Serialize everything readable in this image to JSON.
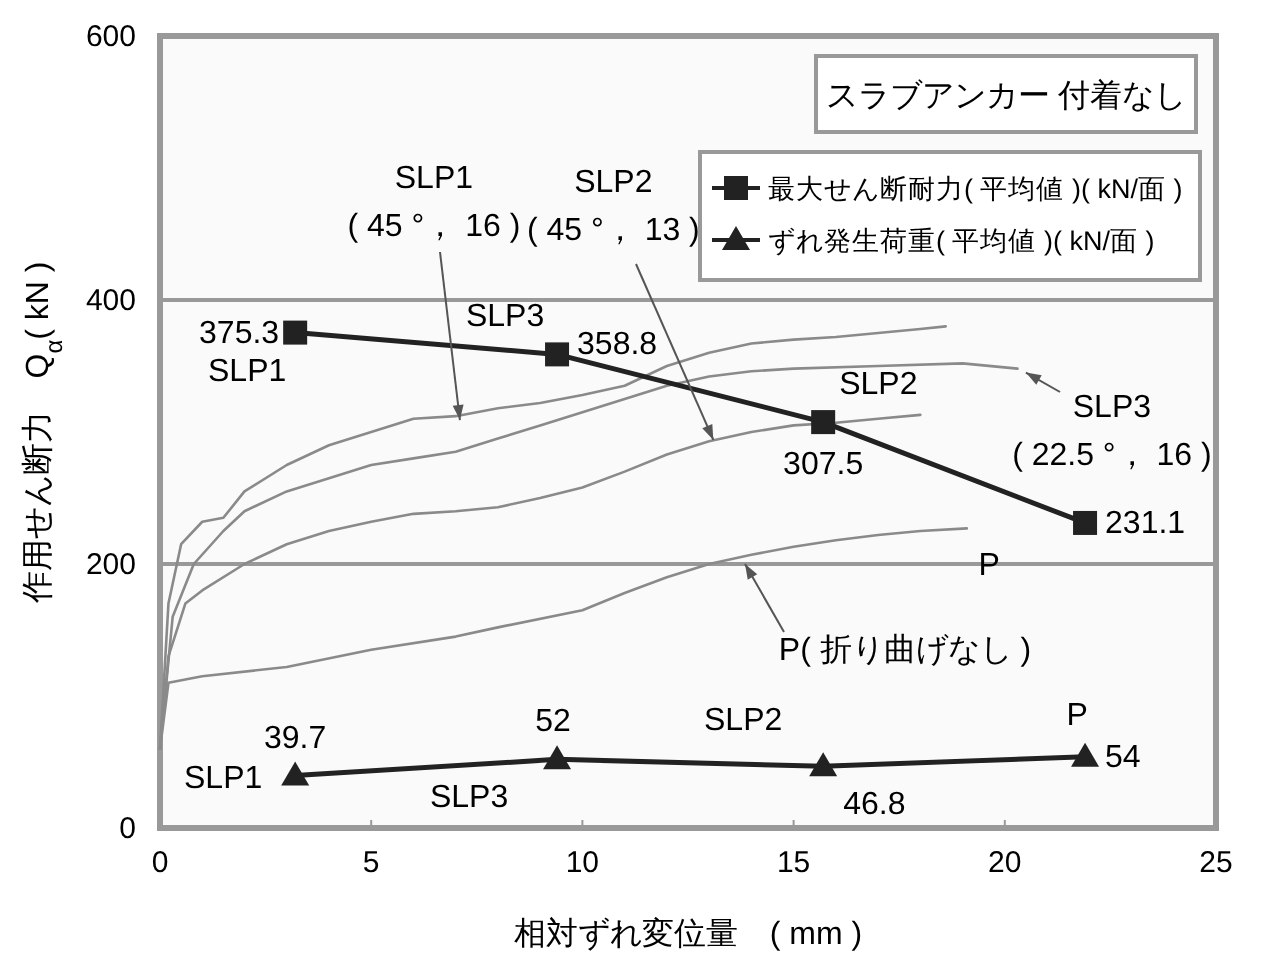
{
  "chart_data": {
    "type": "line",
    "subtitle": "スラブアンカー 付着なし",
    "xlabel": "相対ずれ変位量　( mm )",
    "ylabel": "作用せん断力　Q$_{α}$( kN )",
    "xlim": [
      0,
      25
    ],
    "xticks": [
      0,
      5,
      10,
      15,
      20,
      25
    ],
    "ylim": [
      0,
      600
    ],
    "yticks": [
      0,
      200,
      400,
      600
    ],
    "grid": "y",
    "legend": "top right",
    "series": [
      {
        "color": "#8a8a8a",
        "marker": "none",
        "x": [
          0,
          0.2,
          0.5,
          1,
          1.5,
          2,
          3,
          4,
          5,
          6,
          7,
          8,
          9,
          10,
          11,
          12,
          13,
          14,
          15,
          16,
          17,
          18,
          18.6
        ],
        "values": [
          60,
          170,
          215,
          232,
          235,
          255,
          275,
          290,
          300,
          310,
          312,
          318,
          322,
          328,
          335,
          350,
          360,
          367,
          370,
          372,
          375,
          378,
          380
        ]
      },
      {
        "color": "#8a8a8a",
        "marker": "none",
        "x": [
          0,
          0.3,
          0.8,
          1.5,
          2,
          3,
          4,
          5,
          6,
          7,
          8,
          9,
          10,
          11,
          12,
          13,
          14,
          15,
          17,
          19,
          20.3
        ],
        "values": [
          60,
          160,
          200,
          225,
          240,
          255,
          265,
          275,
          280,
          285,
          295,
          305,
          315,
          325,
          335,
          342,
          346,
          348,
          350,
          352,
          348
        ]
      },
      {
        "color": "#8a8a8a",
        "marker": "none",
        "x": [
          0,
          0.2,
          0.6,
          1,
          2,
          3,
          4,
          5,
          6,
          7,
          8,
          9,
          10,
          11,
          12,
          13,
          14,
          15,
          16,
          17,
          18
        ],
        "values": [
          60,
          130,
          170,
          180,
          200,
          215,
          225,
          232,
          238,
          240,
          243,
          250,
          258,
          270,
          283,
          293,
          300,
          305,
          307,
          310,
          313
        ]
      },
      {
        "color": "#8a8a8a",
        "marker": "none",
        "x": [
          0,
          0.2,
          1,
          3,
          5,
          7,
          8,
          10,
          11,
          12,
          13,
          14,
          15,
          16,
          17,
          18,
          19.1
        ],
        "values": [
          60,
          110,
          115,
          122,
          135,
          145,
          152,
          165,
          178,
          190,
          200,
          207,
          213,
          218,
          222,
          225,
          227
        ]
      },
      {
        "name": "最大せん断耐力( 平均値 )( kN/面 )",
        "color": "#222222",
        "marker": "square",
        "x": [
          3.2,
          9.4,
          15.7,
          21.9
        ],
        "values": [
          375.3,
          358.8,
          307.5,
          231.1
        ],
        "value_labels": [
          "375.3",
          "358.8",
          "307.5",
          "231.1"
        ]
      },
      {
        "name": "ずれ発生荷重( 平均値 )( kN/面 )",
        "color": "#222222",
        "marker": "triangle",
        "x": [
          3.2,
          9.4,
          15.7,
          21.9
        ],
        "values": [
          39.7,
          52,
          46.8,
          54
        ],
        "value_labels": [
          "39.7",
          "52",
          "46.8",
          "54"
        ]
      }
    ],
    "annotations": [
      {
        "text": "SLP1",
        "x": 3.2,
        "y": 375.3
      },
      {
        "text": "SLP3",
        "x": 9.4,
        "y": 358.8
      },
      {
        "text": "SLP2",
        "x": 15.7,
        "y": 307.5
      },
      {
        "text": "P",
        "x": 21.9,
        "y": 231.1
      },
      {
        "text": "SLP1",
        "x": 3.2,
        "y": 39.7
      },
      {
        "text": "SLP3",
        "x": 9.4,
        "y": 52
      },
      {
        "text": "SLP2",
        "x": 15.7,
        "y": 46.8
      },
      {
        "text": "P",
        "x": 21.9,
        "y": 54
      },
      {
        "text": "SLP1\n( 45 °， 16 )",
        "x": 7.1,
        "y": 309
      },
      {
        "text": "SLP2\n( 45 °， 13 )",
        "x": 13.1,
        "y": 294
      },
      {
        "text": "SLP3\n( 22.5 °， 16 )",
        "x": 20.5,
        "y": 345
      },
      {
        "text": "P( 折り曲げなし )",
        "x": 13.85,
        "y": 200
      }
    ]
  }
}
